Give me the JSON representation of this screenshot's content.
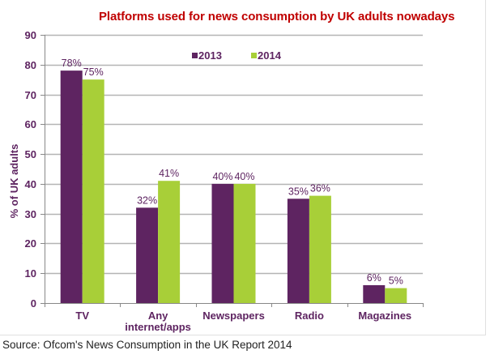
{
  "chart_data": {
    "type": "bar",
    "title": "Platforms used for news consumption by UK adults nowadays",
    "xlabel": "",
    "ylabel": "% of UK adults",
    "ylim": [
      0,
      90
    ],
    "yticks": [
      0,
      10,
      20,
      30,
      40,
      50,
      60,
      70,
      80,
      90
    ],
    "grid": true,
    "legend_position": "top-center",
    "categories": [
      [
        "TV"
      ],
      [
        "Any",
        "internet/apps"
      ],
      [
        "Newspapers"
      ],
      [
        "Radio"
      ],
      [
        "Magazines"
      ]
    ],
    "category_names": [
      "TV",
      "Any internet/apps",
      "Newspapers",
      "Radio",
      "Magazines"
    ],
    "series": [
      {
        "name": "2013",
        "color": "#5e2461",
        "values": [
          78,
          32,
          40,
          35,
          6
        ],
        "labels": [
          "78%",
          "32%",
          "40%",
          "35%",
          "6%"
        ]
      },
      {
        "name": "2014",
        "color": "#a8cf38",
        "values": [
          75,
          41,
          40,
          36,
          5
        ],
        "labels": [
          "75%",
          "41%",
          "40%",
          "36%",
          "5%"
        ]
      }
    ]
  },
  "source": "Source: Ofcom's News Consumption in the UK Report 2014"
}
